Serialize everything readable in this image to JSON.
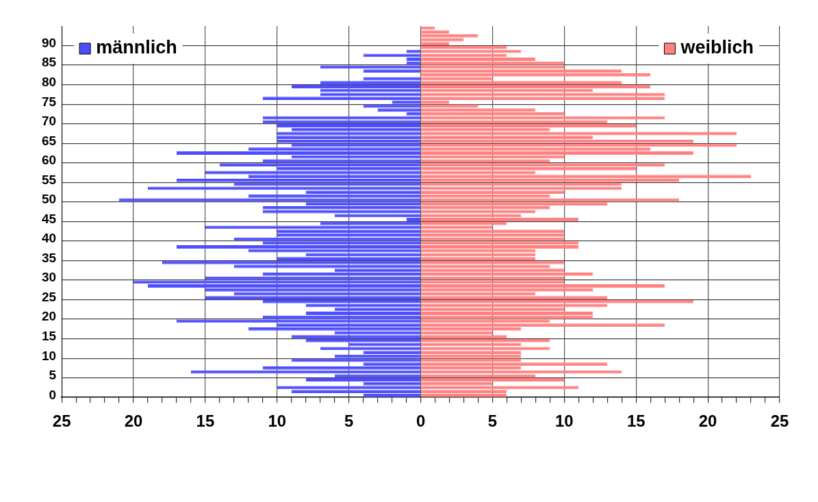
{
  "chart_data": {
    "type": "bar",
    "orientation": "horizontal",
    "stacked": true,
    "grid": true,
    "legend": "top",
    "categories": [
      null,
      null,
      null,
      null,
      "90",
      null,
      null,
      null,
      null,
      "85",
      null,
      null,
      null,
      null,
      "80",
      null,
      null,
      null,
      null,
      "75",
      null,
      null,
      null,
      null,
      "70",
      null,
      null,
      null,
      null,
      "65",
      null,
      null,
      null,
      null,
      "60",
      null,
      null,
      null,
      null,
      "55",
      null,
      null,
      null,
      null,
      "50",
      null,
      null,
      null,
      null,
      "45",
      null,
      null,
      null,
      null,
      "40",
      null,
      null,
      null,
      null,
      "35",
      null,
      null,
      null,
      null,
      "30",
      null,
      null,
      null,
      null,
      "25",
      null,
      null,
      null,
      null,
      "20",
      null,
      null,
      null,
      null,
      "15",
      null,
      null,
      null,
      null,
      "10",
      null,
      null,
      null,
      null,
      "5",
      null,
      null,
      null,
      null,
      "0"
    ],
    "series": [
      {
        "name": "männlich",
        "color": "#4d4dff",
        "values": [
          0,
          0,
          0,
          0,
          0,
          0,
          -1,
          -4,
          -1,
          -1,
          -7,
          -4,
          0,
          -4,
          -7,
          -9,
          -7,
          -7,
          -11,
          -2,
          -4,
          -3,
          -1,
          -11,
          -11,
          -10,
          -9,
          -10,
          -10,
          -10,
          -9,
          -12,
          -17,
          -9,
          -11,
          -14,
          -10,
          -15,
          -12,
          -17,
          -13,
          -19,
          -8,
          -12,
          -21,
          -8,
          -11,
          -11,
          -6,
          -1,
          -7,
          -15,
          -10,
          -10,
          -13,
          -11,
          -17,
          -12,
          -8,
          -10,
          -18,
          -13,
          -6,
          -11,
          -15,
          -20,
          -19,
          -15,
          -13,
          -15,
          -11,
          -8,
          -6,
          -8,
          -11,
          -17,
          -10,
          -12,
          -6,
          -9,
          -8,
          -5,
          -7,
          -4,
          -6,
          -9,
          -4,
          -11,
          -16,
          -6,
          -8,
          -4,
          -10,
          -9,
          -4
        ]
      },
      {
        "name": "weiblich",
        "color": "#ff8080",
        "values": [
          1,
          2,
          4,
          3,
          2,
          6,
          7,
          6,
          8,
          10,
          10,
          14,
          16,
          5,
          14,
          16,
          12,
          17,
          17,
          2,
          4,
          8,
          10,
          17,
          13,
          15,
          9,
          22,
          12,
          19,
          22,
          16,
          19,
          10,
          9,
          17,
          15,
          8,
          23,
          18,
          14,
          14,
          10,
          9,
          18,
          13,
          9,
          8,
          7,
          11,
          6,
          5,
          10,
          10,
          10,
          11,
          11,
          8,
          8,
          8,
          10,
          9,
          10,
          12,
          10,
          10,
          17,
          12,
          8,
          13,
          19,
          13,
          10,
          12,
          12,
          9,
          17,
          7,
          5,
          6,
          9,
          7,
          9,
          7,
          7,
          7,
          13,
          7,
          14,
          8,
          10,
          5,
          11,
          6,
          6
        ]
      }
    ],
    "xlim": [
      -25,
      25
    ],
    "xticks": [
      {
        "value": -25,
        "label": "25"
      },
      {
        "value": -24,
        "label": null
      },
      {
        "value": -23,
        "label": null
      },
      {
        "value": -22,
        "label": null
      },
      {
        "value": -21,
        "label": null
      },
      {
        "value": -20,
        "label": "20"
      },
      {
        "value": -19,
        "label": null
      },
      {
        "value": -18,
        "label": null
      },
      {
        "value": -17,
        "label": null
      },
      {
        "value": -16,
        "label": null
      },
      {
        "value": -15,
        "label": "15"
      },
      {
        "value": -14,
        "label": null
      },
      {
        "value": -13,
        "label": null
      },
      {
        "value": -12,
        "label": null
      },
      {
        "value": -11,
        "label": null
      },
      {
        "value": -10,
        "label": "10"
      },
      {
        "value": -9,
        "label": null
      },
      {
        "value": -8,
        "label": null
      },
      {
        "value": -7,
        "label": null
      },
      {
        "value": -6,
        "label": null
      },
      {
        "value": -5,
        "label": "5"
      },
      {
        "value": -4,
        "label": null
      },
      {
        "value": -3,
        "label": null
      },
      {
        "value": -2,
        "label": null
      },
      {
        "value": -1,
        "label": null
      },
      0,
      {
        "value": 1,
        "label": null
      },
      {
        "value": 2,
        "label": null
      },
      {
        "value": 3,
        "label": null
      },
      {
        "value": 4,
        "label": null
      },
      5,
      {
        "value": 6,
        "label": null
      },
      {
        "value": 7,
        "label": null
      },
      {
        "value": 8,
        "label": null
      },
      {
        "value": 9,
        "label": null
      },
      10,
      {
        "value": 11,
        "label": null
      },
      {
        "value": 12,
        "label": null
      },
      {
        "value": 13,
        "label": null
      },
      {
        "value": 14,
        "label": null
      },
      15,
      {
        "value": 16,
        "label": null
      },
      {
        "value": 17,
        "label": null
      },
      {
        "value": 18,
        "label": null
      },
      {
        "value": 19,
        "label": null
      },
      20,
      {
        "value": 21,
        "label": null
      },
      {
        "value": 22,
        "label": null
      },
      {
        "value": 23,
        "label": null
      },
      {
        "value": 24,
        "label": null
      },
      25
    ]
  }
}
